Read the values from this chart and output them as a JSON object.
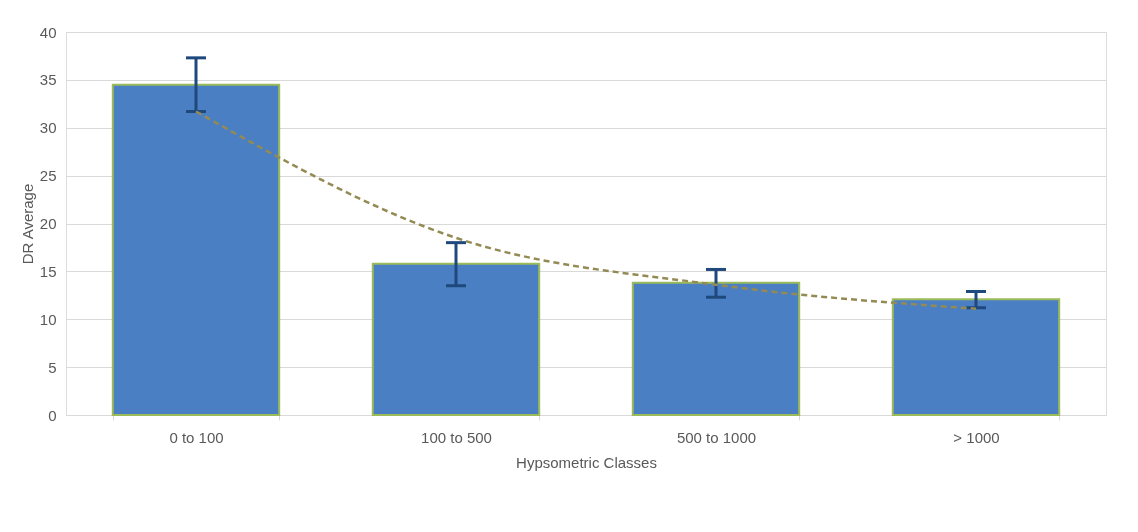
{
  "chart_data": {
    "type": "bar",
    "xlabel": "Hypsometric Classes",
    "ylabel": "DR Average",
    "categories": [
      "0 to 100",
      "100 to 500",
      "500 to 1000",
      "> 1000"
    ],
    "series": [
      {
        "color": "#4a7fc4",
        "values": [
          34.5,
          15.8,
          13.8,
          12.1
        ],
        "errors": [
          [
            31.7,
            37.3
          ],
          [
            13.5,
            18.0
          ],
          [
            12.3,
            15.2
          ],
          [
            11.2,
            12.9
          ]
        ]
      },
      {
        "type": "line",
        "color": "#948a54",
        "values": [
          31.7,
          18.5,
          13.6,
          11.1
        ],
        "line_style": "dashed"
      }
    ],
    "ylim": [
      0,
      40
    ],
    "yticks": [
      0,
      5,
      10,
      15,
      20,
      25,
      30,
      35,
      40
    ],
    "grid": "y"
  }
}
